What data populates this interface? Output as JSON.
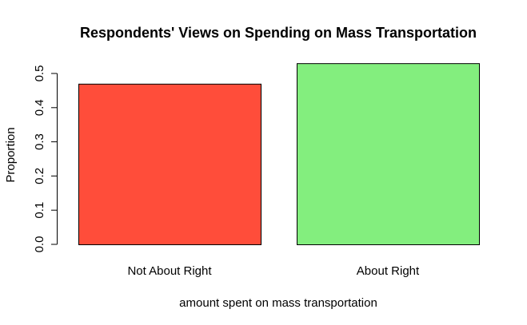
{
  "chart_data": {
    "type": "bar",
    "title": "Respondents' Views on Spending on Mass Transportation",
    "xlabel": "amount spent on mass transportation",
    "ylabel": "Proportion",
    "categories": [
      "Not About Right",
      "About Right"
    ],
    "values": [
      0.47,
      0.53
    ],
    "colors": [
      "#ff4d3a",
      "#83ee7e"
    ],
    "ylim": [
      0,
      0.53
    ],
    "yticks": [
      0.0,
      0.1,
      0.2,
      0.3,
      0.4,
      0.5
    ],
    "ytick_labels": [
      "0.0",
      "0.1",
      "0.2",
      "0.3",
      "0.4",
      "0.5"
    ],
    "grid": false,
    "legend": "none"
  }
}
